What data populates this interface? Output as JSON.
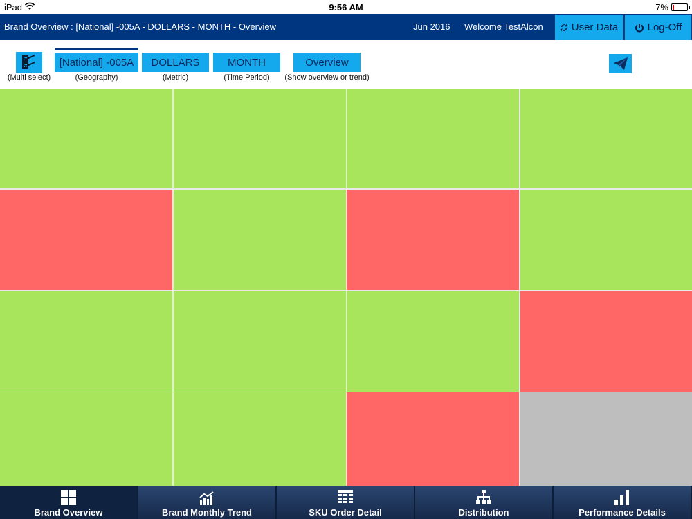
{
  "status_bar": {
    "device": "iPad",
    "time": "9:56 AM",
    "battery": "7%"
  },
  "header": {
    "title": "Brand Overview : [National] -005A - DOLLARS - MONTH - Overview",
    "period": "Jun 2016",
    "welcome": "Welcome TestAlcon",
    "user_data_label": "User Data",
    "logoff_label": "Log-Off"
  },
  "filters": {
    "multi_select_caption": "(Multi select)",
    "geography_value": "[National] -005A",
    "geography_caption": "(Geography)",
    "metric_value": "DOLLARS",
    "metric_caption": "(Metric)",
    "time_period_value": "MONTH",
    "time_period_caption": "(Time Period)",
    "view_value": "Overview",
    "view_caption": "(Show overview or trend)"
  },
  "tiles": [
    [
      "green",
      "green",
      "green",
      "green"
    ],
    [
      "red",
      "green",
      "red",
      "green"
    ],
    [
      "green",
      "green",
      "green",
      "red"
    ],
    [
      "green",
      "green",
      "red",
      "gray"
    ]
  ],
  "tabs": [
    {
      "label": "Brand Overview",
      "icon": "grid-icon",
      "active": true
    },
    {
      "label": "Brand Monthly Trend",
      "icon": "trend-chart-icon",
      "active": false
    },
    {
      "label": "SKU Order Detail",
      "icon": "table-icon",
      "active": false
    },
    {
      "label": "Distribution",
      "icon": "hierarchy-icon",
      "active": false
    },
    {
      "label": "Performance Details",
      "icon": "bar-chart-icon",
      "active": false
    }
  ],
  "colors": {
    "header_bg": "#003580",
    "button_bg": "#14a8ec",
    "tile_green": "#a8e45c",
    "tile_red": "#ff6666",
    "tile_gray": "#bebebe",
    "tabbar_bg": "#1e3557"
  }
}
